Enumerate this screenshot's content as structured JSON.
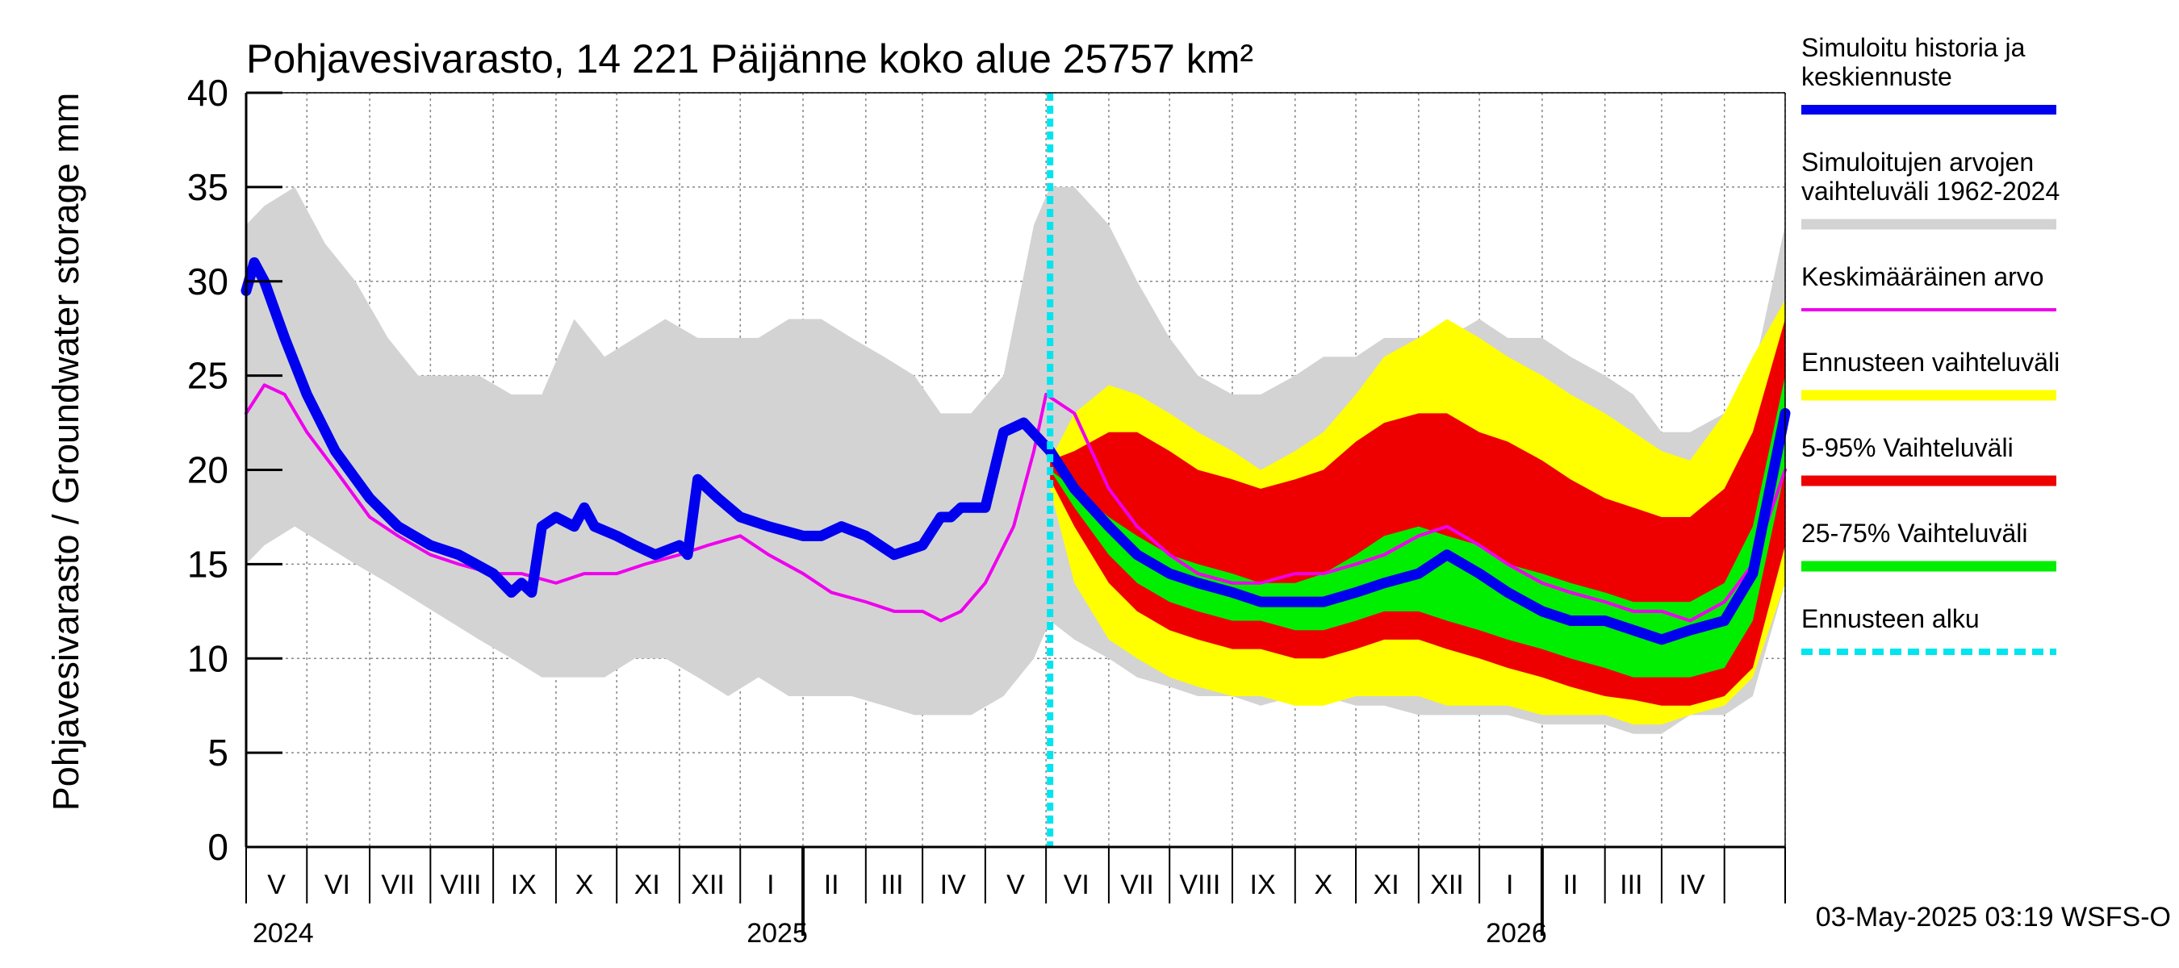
{
  "chart_data": {
    "type": "area",
    "title": "Pohjavesivarasto, 14 221 Päijänne koko alue 25757 km²",
    "ylabel": "Pohjavesivarasto / Groundwater storage   mm",
    "ylim": [
      0,
      40
    ],
    "yticks": [
      0,
      5,
      10,
      15,
      20,
      25,
      30,
      35,
      40
    ],
    "xlim": [
      "2024-04-01",
      "2026-05-01"
    ],
    "grid": true,
    "month_labels": [
      {
        "date": "2024-04-16",
        "label": "V"
      },
      {
        "date": "2024-05-16",
        "label": "VI"
      },
      {
        "date": "2024-06-15",
        "label": "VII"
      },
      {
        "date": "2024-07-16",
        "label": "VIII"
      },
      {
        "date": "2024-08-16",
        "label": "IX"
      },
      {
        "date": "2024-09-15",
        "label": "X"
      },
      {
        "date": "2024-10-16",
        "label": "XI"
      },
      {
        "date": "2024-11-15",
        "label": "XII"
      },
      {
        "date": "2024-12-16",
        "label": "I"
      },
      {
        "date": "2025-01-15",
        "label": "II"
      },
      {
        "date": "2025-02-14",
        "label": "III"
      },
      {
        "date": "2025-03-16",
        "label": "IV"
      },
      {
        "date": "2025-04-16",
        "label": "V"
      },
      {
        "date": "2025-05-16",
        "label": "VI"
      },
      {
        "date": "2025-06-15",
        "label": "VII"
      },
      {
        "date": "2025-07-16",
        "label": "VIII"
      },
      {
        "date": "2025-08-16",
        "label": "IX"
      },
      {
        "date": "2025-09-15",
        "label": "X"
      },
      {
        "date": "2025-10-16",
        "label": "XI"
      },
      {
        "date": "2025-11-15",
        "label": "XII"
      },
      {
        "date": "2025-12-16",
        "label": "I"
      },
      {
        "date": "2026-01-15",
        "label": "II"
      },
      {
        "date": "2026-02-14",
        "label": "III"
      },
      {
        "date": "2026-03-16",
        "label": "IV"
      }
    ],
    "year_labels": [
      {
        "date": "2024-04-01",
        "label": "2024"
      },
      {
        "date": "2024-12-01",
        "label": "2025"
      },
      {
        "date": "2025-12-01",
        "label": "2026"
      }
    ],
    "forecast_start": "2025-05-03",
    "footer": "03-May-2025 03:19 WSFS-O",
    "colors": {
      "history": "#0000ee",
      "sim_range": "#d3d3d3",
      "mean": "#ee00ee",
      "forecast_range": "#ffff00",
      "p5_95": "#ee0000",
      "p25_75": "#00ee00",
      "forecast_start": "#00e5ee"
    },
    "legend": {
      "position": "right",
      "items": [
        {
          "key": "history",
          "label": "Simuloitu historia ja\nkeskiennuste"
        },
        {
          "key": "sim_range",
          "label": "Simuloitujen arvojen\nvaihteluväli 1962-2024"
        },
        {
          "key": "mean",
          "label": "Keskimääräinen arvo"
        },
        {
          "key": "forecast_range",
          "label": "Ennusteen vaihteluväli"
        },
        {
          "key": "p5_95",
          "label": "5-95% Vaihteluväli"
        },
        {
          "key": "p25_75",
          "label": "25-75% Vaihteluväli"
        },
        {
          "key": "forecast_start",
          "label": "Ennusteen alku"
        }
      ]
    },
    "series": [
      {
        "key": "sim_range",
        "kind": "band",
        "x": [
          "2024-04-01",
          "2024-04-10",
          "2024-04-25",
          "2024-05-10",
          "2024-05-25",
          "2024-06-10",
          "2024-06-25",
          "2024-07-10",
          "2024-07-25",
          "2024-08-10",
          "2024-08-25",
          "2024-09-10",
          "2024-09-25",
          "2024-10-10",
          "2024-10-25",
          "2024-11-10",
          "2024-11-25",
          "2024-12-10",
          "2024-12-25",
          "2025-01-10",
          "2025-01-25",
          "2025-02-10",
          "2025-02-25",
          "2025-03-10",
          "2025-03-25",
          "2025-04-10",
          "2025-04-25",
          "2025-05-03",
          "2025-05-15",
          "2025-06-01",
          "2025-06-15",
          "2025-07-01",
          "2025-07-15",
          "2025-08-01",
          "2025-08-15",
          "2025-09-01",
          "2025-09-15",
          "2025-10-01",
          "2025-10-15",
          "2025-11-01",
          "2025-11-15",
          "2025-12-01",
          "2025-12-15",
          "2026-01-01",
          "2026-01-15",
          "2026-02-01",
          "2026-02-15",
          "2026-03-01",
          "2026-03-15",
          "2026-04-01",
          "2026-04-15",
          "2026-05-01"
        ],
        "upper": [
          33,
          34,
          35,
          32,
          30,
          27,
          25,
          25,
          25,
          24,
          24,
          28,
          26,
          27,
          28,
          27,
          27,
          27,
          28,
          28,
          27,
          26,
          25,
          23,
          23,
          25,
          33,
          35,
          35,
          33,
          30,
          27,
          25,
          24,
          24,
          25,
          26,
          26,
          27,
          27,
          27,
          28,
          27,
          27,
          26,
          25,
          24,
          22,
          22,
          23,
          25,
          33
        ],
        "lower": [
          15,
          16,
          17,
          16,
          15,
          14,
          13,
          12,
          11,
          10,
          9,
          9,
          9,
          10,
          10,
          9,
          8,
          9,
          8,
          8,
          8,
          7.5,
          7,
          7,
          7,
          8,
          10,
          12,
          11,
          10,
          9,
          8.5,
          8,
          8,
          7.5,
          8,
          8,
          7.5,
          7.5,
          7,
          7,
          7,
          7,
          6.5,
          6.5,
          6.5,
          6,
          6,
          7,
          7,
          8,
          14
        ]
      },
      {
        "key": "forecast_range",
        "kind": "band",
        "x": [
          "2025-05-03",
          "2025-05-15",
          "2025-06-01",
          "2025-06-15",
          "2025-07-01",
          "2025-07-15",
          "2025-08-01",
          "2025-08-15",
          "2025-09-01",
          "2025-09-15",
          "2025-10-01",
          "2025-10-15",
          "2025-11-01",
          "2025-11-15",
          "2025-12-01",
          "2025-12-15",
          "2026-01-01",
          "2026-01-15",
          "2026-02-01",
          "2026-02-15",
          "2026-03-01",
          "2026-03-15",
          "2026-04-01",
          "2026-04-15",
          "2026-05-01"
        ],
        "upper": [
          20.5,
          23,
          24.5,
          24,
          23,
          22,
          21,
          20,
          21,
          22,
          24,
          26,
          27,
          28,
          27,
          26,
          25,
          24,
          23,
          22,
          21,
          20.5,
          23,
          26,
          29
        ],
        "lower": [
          19,
          14,
          11,
          10,
          9,
          8.5,
          8,
          8,
          7.5,
          7.5,
          8,
          8,
          8,
          7.5,
          7.5,
          7.5,
          7,
          7,
          7,
          6.5,
          6.5,
          7,
          7.5,
          9,
          14
        ]
      },
      {
        "key": "p5_95",
        "kind": "band",
        "x": [
          "2025-05-03",
          "2025-05-15",
          "2025-06-01",
          "2025-06-15",
          "2025-07-01",
          "2025-07-15",
          "2025-08-01",
          "2025-08-15",
          "2025-09-01",
          "2025-09-15",
          "2025-10-01",
          "2025-10-15",
          "2025-11-01",
          "2025-11-15",
          "2025-12-01",
          "2025-12-15",
          "2026-01-01",
          "2026-01-15",
          "2026-02-01",
          "2026-02-15",
          "2026-03-01",
          "2026-03-15",
          "2026-04-01",
          "2026-04-15",
          "2026-05-01"
        ],
        "upper": [
          20.5,
          21,
          22,
          22,
          21,
          20,
          19.5,
          19,
          19.5,
          20,
          21.5,
          22.5,
          23,
          23,
          22,
          21.5,
          20.5,
          19.5,
          18.5,
          18,
          17.5,
          17.5,
          19,
          22,
          28
        ],
        "lower": [
          19.5,
          17,
          14,
          12.5,
          11.5,
          11,
          10.5,
          10.5,
          10,
          10,
          10.5,
          11,
          11,
          10.5,
          10,
          9.5,
          9,
          8.5,
          8,
          7.8,
          7.5,
          7.5,
          8,
          9.5,
          16
        ]
      },
      {
        "key": "p25_75",
        "kind": "band",
        "x": [
          "2025-05-03",
          "2025-05-15",
          "2025-06-01",
          "2025-06-15",
          "2025-07-01",
          "2025-07-15",
          "2025-08-01",
          "2025-08-15",
          "2025-09-01",
          "2025-09-15",
          "2025-10-01",
          "2025-10-15",
          "2025-11-01",
          "2025-11-15",
          "2025-12-01",
          "2025-12-15",
          "2026-01-01",
          "2026-01-15",
          "2026-02-01",
          "2026-02-15",
          "2026-03-01",
          "2026-03-15",
          "2026-04-01",
          "2026-04-15",
          "2026-05-01"
        ],
        "upper": [
          20,
          19,
          17.5,
          16.5,
          15.5,
          15,
          14.5,
          14,
          14,
          14.5,
          15.5,
          16.5,
          17,
          16.5,
          16,
          15,
          14.5,
          14,
          13.5,
          13,
          13,
          13,
          14,
          17,
          25
        ],
        "lower": [
          20,
          18,
          15.5,
          14,
          13,
          12.5,
          12,
          12,
          11.5,
          11.5,
          12,
          12.5,
          12.5,
          12,
          11.5,
          11,
          10.5,
          10,
          9.5,
          9,
          9,
          9,
          9.5,
          12,
          20
        ]
      },
      {
        "key": "mean",
        "kind": "line",
        "x": [
          "2024-04-01",
          "2024-04-10",
          "2024-04-20",
          "2024-05-01",
          "2024-05-15",
          "2024-06-01",
          "2024-06-15",
          "2024-07-01",
          "2024-07-15",
          "2024-08-01",
          "2024-08-15",
          "2024-09-01",
          "2024-09-15",
          "2024-10-01",
          "2024-10-15",
          "2024-11-01",
          "2024-11-15",
          "2024-12-01",
          "2024-12-15",
          "2025-01-01",
          "2025-01-15",
          "2025-02-01",
          "2025-02-15",
          "2025-03-01",
          "2025-03-10",
          "2025-03-20",
          "2025-04-01",
          "2025-04-15",
          "2025-04-25",
          "2025-05-01",
          "2025-05-15",
          "2025-06-01",
          "2025-06-15",
          "2025-07-01",
          "2025-07-15",
          "2025-08-01",
          "2025-08-15",
          "2025-09-01",
          "2025-09-15",
          "2025-10-01",
          "2025-10-15",
          "2025-11-01",
          "2025-11-15",
          "2025-12-01",
          "2025-12-15",
          "2026-01-01",
          "2026-01-15",
          "2026-02-01",
          "2026-02-15",
          "2026-03-01",
          "2026-03-15",
          "2026-04-01",
          "2026-04-15",
          "2026-05-01"
        ],
        "values": [
          23,
          24.5,
          24,
          22,
          20,
          17.5,
          16.5,
          15.5,
          15,
          14.5,
          14.5,
          14,
          14.5,
          14.5,
          15,
          15.5,
          16,
          16.5,
          15.5,
          14.5,
          13.5,
          13,
          12.5,
          12.5,
          12,
          12.5,
          14,
          17,
          21,
          24,
          23,
          19,
          17,
          15.5,
          14.5,
          14,
          14,
          14.5,
          14.5,
          15,
          15.5,
          16.5,
          17,
          16,
          15,
          14,
          13.5,
          13,
          12.5,
          12.5,
          12,
          13,
          15,
          20
        ]
      },
      {
        "key": "history",
        "kind": "line",
        "x": [
          "2024-04-01",
          "2024-04-05",
          "2024-04-10",
          "2024-04-20",
          "2024-05-01",
          "2024-05-15",
          "2024-06-01",
          "2024-06-15",
          "2024-07-01",
          "2024-07-15",
          "2024-08-01",
          "2024-08-10",
          "2024-08-15",
          "2024-08-20",
          "2024-08-25",
          "2024-09-01",
          "2024-09-10",
          "2024-09-15",
          "2024-09-20",
          "2024-10-01",
          "2024-10-10",
          "2024-10-20",
          "2024-11-01",
          "2024-11-05",
          "2024-11-10",
          "2024-11-20",
          "2024-12-01",
          "2024-12-15",
          "2025-01-01",
          "2025-01-10",
          "2025-01-20",
          "2025-02-01",
          "2025-02-15",
          "2025-03-01",
          "2025-03-10",
          "2025-03-15",
          "2025-03-20",
          "2025-04-01",
          "2025-04-10",
          "2025-04-20",
          "2025-05-03",
          "2025-05-15",
          "2025-06-01",
          "2025-06-15",
          "2025-07-01",
          "2025-07-15",
          "2025-08-01",
          "2025-08-15",
          "2025-09-01",
          "2025-09-15",
          "2025-10-01",
          "2025-10-15",
          "2025-11-01",
          "2025-11-15",
          "2025-12-01",
          "2025-12-15",
          "2026-01-01",
          "2026-01-15",
          "2026-02-01",
          "2026-02-15",
          "2026-03-01",
          "2026-03-15",
          "2026-04-01",
          "2026-04-15",
          "2026-05-01"
        ],
        "values": [
          29.5,
          31,
          30,
          27,
          24,
          21,
          18.5,
          17,
          16,
          15.5,
          14.5,
          13.5,
          14,
          13.5,
          17,
          17.5,
          17,
          18,
          17,
          16.5,
          16,
          15.5,
          16,
          15.5,
          19.5,
          18.5,
          17.5,
          17,
          16.5,
          16.5,
          17,
          16.5,
          15.5,
          16,
          17.5,
          17.5,
          18,
          18,
          22,
          22.5,
          21,
          19,
          17,
          15.5,
          14.5,
          14,
          13.5,
          13,
          13,
          13,
          13.5,
          14,
          14.5,
          15.5,
          14.5,
          13.5,
          12.5,
          12,
          12,
          11.5,
          11,
          11.5,
          12,
          14.5,
          23
        ]
      }
    ]
  }
}
